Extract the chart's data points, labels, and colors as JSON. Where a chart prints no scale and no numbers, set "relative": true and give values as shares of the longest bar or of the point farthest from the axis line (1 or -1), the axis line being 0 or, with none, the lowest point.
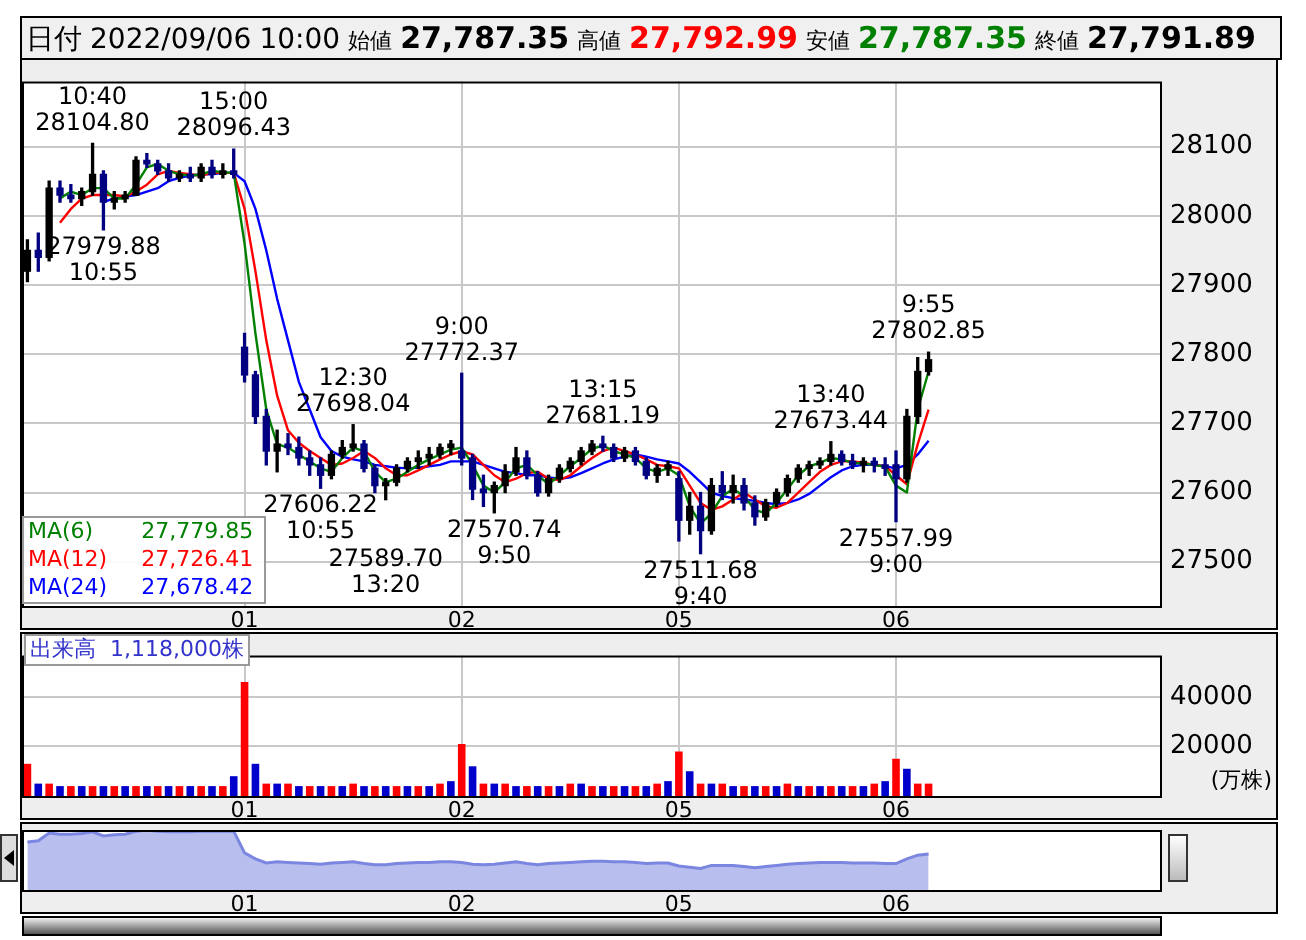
{
  "chart_data": [
    {
      "type": "candlestick",
      "title": "日付 2022/09/06 10:00 始値 27,787.35 高値 27,792.99 安値 27,787.35 終値 27,791.89",
      "categories": [
        null,
        null,
        null,
        null,
        null,
        null,
        null,
        null,
        null,
        null,
        null,
        null,
        null,
        null,
        null,
        null,
        null,
        null,
        null,
        null,
        "01",
        null,
        null,
        null,
        null,
        null,
        null,
        null,
        null,
        null,
        null,
        null,
        null,
        null,
        null,
        null,
        null,
        null,
        null,
        null,
        "02",
        null,
        null,
        null,
        null,
        null,
        null,
        null,
        null,
        null,
        null,
        null,
        null,
        null,
        null,
        null,
        null,
        null,
        null,
        null,
        "05",
        null,
        null,
        null,
        null,
        null,
        null,
        null,
        null,
        null,
        null,
        null,
        null,
        null,
        null,
        null,
        null,
        null,
        null,
        null,
        "06",
        null,
        null,
        null,
        null,
        null,
        null,
        null,
        null,
        null,
        null,
        null,
        null,
        null,
        null,
        null,
        null,
        null,
        null,
        null,
        null,
        null,
        null,
        null,
        null
      ],
      "ohlc": [
        [
          27920,
          27965,
          27905,
          27950
        ],
        [
          27950,
          27975,
          27920,
          27940
        ],
        [
          27940,
          28050,
          27935,
          28040
        ],
        [
          28040,
          28050,
          28020,
          28030
        ],
        [
          28030,
          28045,
          28020,
          28025
        ],
        [
          28025,
          28040,
          28015,
          28035
        ],
        [
          28035,
          28104.8,
          28030,
          28060
        ],
        [
          28060,
          28065,
          27979.88,
          28020
        ],
        [
          28020,
          28035,
          28010,
          28025
        ],
        [
          28025,
          28035,
          28020,
          28030
        ],
        [
          28030,
          28085,
          28030,
          28080
        ],
        [
          28080,
          28090,
          28070,
          28075
        ],
        [
          28075,
          28080,
          28060,
          28065
        ],
        [
          28065,
          28075,
          28050,
          28055
        ],
        [
          28055,
          28065,
          28050,
          28060
        ],
        [
          28060,
          28070,
          28050,
          28055
        ],
        [
          28055,
          28075,
          28050,
          28070
        ],
        [
          28070,
          28080,
          28055,
          28060
        ],
        [
          28060,
          28075,
          28055,
          28065
        ],
        [
          28065,
          28096.43,
          28055,
          28060
        ],
        [
          27810,
          27830,
          27760,
          27770
        ],
        [
          27770,
          27775,
          27700,
          27710
        ],
        [
          27710,
          27720,
          27640,
          27660
        ],
        [
          27660,
          27690,
          27630,
          27670
        ],
        [
          27670,
          27685,
          27655,
          27665
        ],
        [
          27665,
          27680,
          27640,
          27650
        ],
        [
          27650,
          27660,
          27625,
          27640
        ],
        [
          27640,
          27650,
          27606.22,
          27625
        ],
        [
          27625,
          27660,
          27620,
          27655
        ],
        [
          27655,
          27675,
          27650,
          27665
        ],
        [
          27665,
          27698.04,
          27660,
          27670
        ],
        [
          27670,
          27675,
          27630,
          27635
        ],
        [
          27635,
          27640,
          27600,
          27610
        ],
        [
          27610,
          27620,
          27589.7,
          27615
        ],
        [
          27615,
          27640,
          27610,
          27635
        ],
        [
          27635,
          27650,
          27630,
          27645
        ],
        [
          27645,
          27660,
          27635,
          27650
        ],
        [
          27650,
          27665,
          27640,
          27655
        ],
        [
          27655,
          27670,
          27650,
          27665
        ],
        [
          27665,
          27675,
          27655,
          27670
        ],
        [
          27660,
          27772.37,
          27640,
          27650
        ],
        [
          27650,
          27655,
          27590,
          27605
        ],
        [
          27605,
          27625,
          27580,
          27600
        ],
        [
          27600,
          27615,
          27570.74,
          27610
        ],
        [
          27610,
          27640,
          27600,
          27630
        ],
        [
          27630,
          27665,
          27625,
          27650
        ],
        [
          27650,
          27660,
          27620,
          27625
        ],
        [
          27625,
          27630,
          27595,
          27600
        ],
        [
          27600,
          27625,
          27595,
          27620
        ],
        [
          27620,
          27640,
          27615,
          27635
        ],
        [
          27635,
          27650,
          27630,
          27645
        ],
        [
          27645,
          27665,
          27640,
          27660
        ],
        [
          27660,
          27675,
          27655,
          27670
        ],
        [
          27670,
          27681.19,
          27660,
          27665
        ],
        [
          27665,
          27670,
          27645,
          27650
        ],
        [
          27650,
          27665,
          27645,
          27660
        ],
        [
          27660,
          27665,
          27640,
          27645
        ],
        [
          27645,
          27650,
          27620,
          27625
        ],
        [
          27625,
          27640,
          27615,
          27635
        ],
        [
          27635,
          27645,
          27625,
          27640
        ],
        [
          27620,
          27630,
          27530,
          27560
        ],
        [
          27560,
          27600,
          27540,
          27580
        ],
        [
          27580,
          27600,
          27511.68,
          27545
        ],
        [
          27545,
          27620,
          27540,
          27610
        ],
        [
          27610,
          27630,
          27590,
          27600
        ],
        [
          27600,
          27625,
          27585,
          27610
        ],
        [
          27610,
          27620,
          27575,
          27585
        ],
        [
          27585,
          27595,
          27553,
          27565
        ],
        [
          27565,
          27590,
          27560,
          27585
        ],
        [
          27585,
          27605,
          27580,
          27600
        ],
        [
          27600,
          27625,
          27595,
          27620
        ],
        [
          27620,
          27640,
          27615,
          27635
        ],
        [
          27635,
          27645,
          27625,
          27640
        ],
        [
          27640,
          27650,
          27635,
          27645
        ],
        [
          27645,
          27673.44,
          27640,
          27655
        ],
        [
          27655,
          27660,
          27640,
          27645
        ],
        [
          27645,
          27655,
          27635,
          27640
        ],
        [
          27640,
          27650,
          27630,
          27645
        ],
        [
          27645,
          27650,
          27630,
          27640
        ],
        [
          27640,
          27650,
          27625,
          27635
        ],
        [
          27640,
          27660,
          27557.99,
          27620
        ],
        [
          27620,
          27720,
          27615,
          27710
        ],
        [
          27710,
          27795,
          27700,
          27775
        ],
        [
          27775,
          27802.85,
          27770,
          27791.89
        ],
        null,
        null,
        null,
        null,
        null,
        null,
        null,
        null,
        null,
        null,
        null,
        null,
        null,
        null,
        null,
        null,
        null,
        null,
        null,
        null,
        null
      ],
      "colors": [
        "#000000",
        "#000080",
        "#000000",
        "#000080",
        "#000080",
        "#000000",
        "#000000",
        "#000080",
        "#000000",
        "#000000",
        "#000000",
        "#000080",
        "#000080",
        "#000080",
        "#000000",
        "#000080",
        "#000000",
        "#000080",
        "#000000",
        "#000080",
        "#000080",
        "#000080",
        "#000080",
        "#000000",
        "#000080",
        "#000080",
        "#000080",
        "#000080",
        "#000000",
        "#000000",
        "#000000",
        "#000080",
        "#000080",
        "#000000",
        "#000000",
        "#000000",
        "#000000",
        "#000000",
        "#000000",
        "#000000",
        "#000080",
        "#000080",
        "#000080",
        "#000000",
        "#000000",
        "#000000",
        "#000080",
        "#000080",
        "#000000",
        "#000000",
        "#000000",
        "#000000",
        "#000000",
        "#000080",
        "#000080",
        "#000000",
        "#000080",
        "#000080",
        "#000000",
        "#000000",
        "#000080",
        "#000000",
        "#000080",
        "#000000",
        "#000080",
        "#000000",
        "#000080",
        "#000080",
        "#000000",
        "#000000",
        "#000000",
        "#000000",
        "#000000",
        "#000000",
        "#000000",
        "#000080",
        "#000080",
        "#000000",
        "#000080",
        "#000080",
        "#000080",
        "#000000",
        "#000000",
        "#000000",
        null,
        null,
        null,
        null,
        null,
        null,
        null,
        null,
        null,
        null,
        null,
        null,
        null,
        null,
        null,
        null,
        null,
        null,
        null,
        null,
        null
      ],
      "series": [
        {
          "name": "MA(6)  27,779.85",
          "type": "line",
          "color": "#008000",
          "values": [
            null,
            null,
            null,
            28025,
            28035,
            28030,
            28040,
            28040,
            28025,
            28025,
            28045,
            28070,
            28075,
            28065,
            28060,
            28058,
            28060,
            28065,
            28063,
            28062,
            27960,
            27830,
            27720,
            27670,
            27665,
            27655,
            27645,
            27635,
            27630,
            27650,
            27665,
            27660,
            27630,
            27615,
            27620,
            27630,
            27640,
            27648,
            27655,
            27662,
            27665,
            27640,
            27610,
            27600,
            27615,
            27635,
            27640,
            27625,
            27612,
            27625,
            27638,
            27650,
            27663,
            27668,
            27660,
            27655,
            27650,
            27635,
            27630,
            27635,
            27625,
            27580,
            27555,
            27570,
            27595,
            27605,
            27595,
            27575,
            27570,
            27585,
            27605,
            27625,
            27638,
            27643,
            27650,
            27648,
            27643,
            27642,
            27640,
            27637,
            27610,
            27600,
            27720,
            27775,
            null,
            null,
            null,
            null,
            null,
            null,
            null,
            null,
            null,
            null,
            null,
            null,
            null,
            null,
            null,
            null,
            null,
            null,
            null,
            null,
            null
          ]
        },
        {
          "name": "MA(12)  27,726.41",
          "type": "line",
          "color": "#ff0000",
          "values": [
            null,
            null,
            null,
            27990,
            28010,
            28025,
            28030,
            28030,
            28030,
            28028,
            28035,
            28045,
            28060,
            28065,
            28062,
            28060,
            28058,
            28062,
            28062,
            28062,
            28010,
            27920,
            27820,
            27740,
            27690,
            27672,
            27660,
            27650,
            27640,
            27642,
            27650,
            27660,
            27650,
            27635,
            27625,
            27625,
            27632,
            27640,
            27648,
            27655,
            27660,
            27655,
            27640,
            27625,
            27615,
            27620,
            27628,
            27630,
            27620,
            27618,
            27625,
            27638,
            27650,
            27660,
            27665,
            27660,
            27655,
            27648,
            27640,
            27638,
            27635,
            27610,
            27585,
            27575,
            27580,
            27590,
            27600,
            27590,
            27580,
            27578,
            27585,
            27600,
            27615,
            27630,
            27640,
            27645,
            27645,
            27643,
            27640,
            27638,
            27625,
            27612,
            27670,
            27720,
            null,
            null,
            null,
            null,
            null,
            null,
            null,
            null,
            null,
            null,
            null,
            null,
            null,
            null,
            null,
            null,
            null,
            null,
            null,
            null,
            null
          ]
        },
        {
          "name": "MA(24)  27,678.42",
          "type": "line",
          "color": "#0000ff",
          "values": [
            null,
            null,
            null,
            null,
            null,
            null,
            null,
            28020,
            28025,
            28028,
            28030,
            28035,
            28040,
            28050,
            28055,
            28058,
            28060,
            28060,
            28062,
            28062,
            28050,
            28010,
            27950,
            27880,
            27820,
            27760,
            27720,
            27680,
            27660,
            27652,
            27648,
            27645,
            27640,
            27638,
            27636,
            27635,
            27636,
            27638,
            27640,
            27645,
            27645,
            27645,
            27640,
            27635,
            27630,
            27628,
            27625,
            27625,
            27622,
            27620,
            27622,
            27628,
            27635,
            27642,
            27648,
            27652,
            27655,
            27652,
            27648,
            27645,
            27642,
            27630,
            27615,
            27600,
            27595,
            27592,
            27590,
            27588,
            27585,
            27583,
            27585,
            27590,
            27598,
            27610,
            27622,
            27632,
            27638,
            27640,
            27640,
            27638,
            27635,
            27640,
            27655,
            27675,
            null,
            null,
            null,
            null,
            null,
            null,
            null,
            null,
            null,
            null,
            null,
            null,
            null,
            null,
            null,
            null,
            null,
            null,
            null,
            null,
            null
          ]
        }
      ],
      "ylim": [
        27436,
        28194
      ],
      "yticks": [
        27500,
        27600,
        27700,
        27800,
        27900,
        28000,
        28100
      ],
      "grid": true,
      "annotations": [
        {
          "text": "10:40\n28104.80",
          "y": 28104.8
        },
        {
          "text": "27979.88\n10:55",
          "y": 27979.88
        },
        {
          "text": "15:00\n28096.43",
          "y": 28096.43
        },
        {
          "text": "12:30\n27698.04",
          "y": 27698.04
        },
        {
          "text": "27606.22\n10:55",
          "y": 27606.22
        },
        {
          "text": "27589.70\n13:20",
          "y": 27589.7
        },
        {
          "text": "9:00\n27772.37",
          "y": 27772.37
        },
        {
          "text": "27570.74\n9:50",
          "y": 27570.74
        },
        {
          "text": "13:15\n27681.19",
          "y": 27681.19
        },
        {
          "text": "27511.68\n9:40",
          "y": 27511.68
        },
        {
          "text": "13:40\n27673.44",
          "y": 27673.44
        },
        {
          "text": "27557.99\n9:00",
          "y": 27557.99
        },
        {
          "text": "9:55\n27802.85",
          "y": 27802.85
        }
      ]
    },
    {
      "type": "bar",
      "title": "出来高  1,118,000株",
      "ylabel": "(万株)",
      "categories": [
        null,
        null,
        null,
        null,
        null,
        null,
        null,
        null,
        null,
        null,
        null,
        null,
        null,
        null,
        null,
        null,
        null,
        null,
        null,
        null,
        "01",
        null,
        null,
        null,
        null,
        null,
        null,
        null,
        null,
        null,
        null,
        null,
        null,
        null,
        null,
        null,
        null,
        null,
        null,
        null,
        "02",
        null,
        null,
        null,
        null,
        null,
        null,
        null,
        null,
        null,
        null,
        null,
        null,
        null,
        null,
        null,
        null,
        null,
        null,
        null,
        "05",
        null,
        null,
        null,
        null,
        null,
        null,
        null,
        null,
        null,
        null,
        null,
        null,
        null,
        null,
        null,
        null,
        null,
        null,
        null,
        "06",
        null,
        null,
        null,
        null,
        null,
        null,
        null,
        null,
        null,
        null,
        null,
        null,
        null,
        null,
        null,
        null,
        null,
        null,
        null,
        null,
        null,
        null,
        null,
        null
      ],
      "values": [
        13000,
        5000,
        5000,
        4000,
        4000,
        4000,
        4000,
        4000,
        4000,
        4000,
        4000,
        4000,
        4000,
        4000,
        4000,
        4000,
        4000,
        4000,
        4000,
        8000,
        46000,
        13000,
        5000,
        5000,
        5000,
        4000,
        4000,
        4000,
        4000,
        4000,
        5000,
        4000,
        4000,
        4000,
        4000,
        4000,
        4000,
        4000,
        5000,
        6000,
        21000,
        12000,
        5000,
        5000,
        5000,
        4000,
        4000,
        4000,
        4000,
        4000,
        5000,
        5000,
        4000,
        4000,
        4000,
        4000,
        4000,
        4000,
        5000,
        6000,
        18000,
        10000,
        5000,
        5000,
        5000,
        4000,
        4000,
        4000,
        4000,
        4000,
        5000,
        4000,
        4000,
        4000,
        4000,
        4000,
        4000,
        4000,
        5000,
        6000,
        15000,
        11000,
        5000,
        5000,
        null,
        null,
        null,
        null,
        null,
        null,
        null,
        null,
        null,
        null,
        null,
        null,
        null,
        null,
        null,
        null,
        null,
        null,
        null,
        null,
        null
      ],
      "colors": [
        "#ff0000",
        "#0000cc",
        "#ff0000",
        "#0000cc",
        "#ff0000",
        "#0000cc",
        "#ff0000",
        "#0000cc",
        "#ff0000",
        "#0000cc",
        "#ff0000",
        "#0000cc",
        "#ff0000",
        "#0000cc",
        "#ff0000",
        "#0000cc",
        "#ff0000",
        "#0000cc",
        "#ff0000",
        "#0000cc",
        "#ff0000",
        "#0000cc",
        "#ff0000",
        "#0000cc",
        "#ff0000",
        "#0000cc",
        "#ff0000",
        "#0000cc",
        "#ff0000",
        "#0000cc",
        "#ff0000",
        "#0000cc",
        "#ff0000",
        "#0000cc",
        "#ff0000",
        "#0000cc",
        "#ff0000",
        "#0000cc",
        "#ff0000",
        "#0000cc",
        "#ff0000",
        "#0000cc",
        "#ff0000",
        "#0000cc",
        "#ff0000",
        "#0000cc",
        "#ff0000",
        "#0000cc",
        "#ff0000",
        "#0000cc",
        "#ff0000",
        "#0000cc",
        "#ff0000",
        "#0000cc",
        "#ff0000",
        "#0000cc",
        "#ff0000",
        "#0000cc",
        "#ff0000",
        "#0000cc",
        "#ff0000",
        "#0000cc",
        "#ff0000",
        "#0000cc",
        "#ff0000",
        "#0000cc",
        "#ff0000",
        "#0000cc",
        "#ff0000",
        "#0000cc",
        "#ff0000",
        "#0000cc",
        "#ff0000",
        "#0000cc",
        "#ff0000",
        "#0000cc",
        "#ff0000",
        "#0000cc",
        "#ff0000",
        "#0000cc",
        "#ff0000",
        "#0000cc",
        "#ff0000",
        "#ff0000",
        null,
        null,
        null,
        null,
        null,
        null,
        null,
        null,
        null,
        null,
        null,
        null,
        null,
        null,
        null,
        null,
        null,
        null,
        null,
        null,
        null
      ],
      "ylim": [
        0,
        56700
      ],
      "yticks": [
        20000,
        40000
      ],
      "grid": true
    },
    {
      "type": "area",
      "relative": true,
      "color": "#7a86e0",
      "categories": [
        null,
        null,
        null,
        null,
        null,
        null,
        null,
        null,
        null,
        null,
        null,
        null,
        null,
        null,
        null,
        null,
        null,
        null,
        null,
        null,
        "01",
        null,
        null,
        null,
        null,
        null,
        null,
        null,
        null,
        null,
        null,
        null,
        null,
        null,
        null,
        null,
        null,
        null,
        null,
        null,
        "02",
        null,
        null,
        null,
        null,
        null,
        null,
        null,
        null,
        null,
        null,
        null,
        null,
        null,
        null,
        null,
        null,
        null,
        null,
        null,
        "05",
        null,
        null,
        null,
        null,
        null,
        null,
        null,
        null,
        null,
        null,
        null,
        null,
        null,
        null,
        null,
        null,
        null,
        null,
        null,
        "06",
        null,
        null,
        null,
        null,
        null,
        null,
        null,
        null,
        null,
        null,
        null,
        null,
        null,
        null,
        null,
        null,
        null,
        null,
        null,
        null,
        null,
        null,
        null,
        null
      ],
      "values": [
        0.8,
        0.82,
        0.95,
        0.93,
        0.93,
        0.94,
        0.97,
        0.9,
        0.92,
        0.93,
        0.98,
        1,
        0.98,
        0.97,
        0.97,
        0.97,
        0.98,
        0.98,
        0.98,
        0.98,
        0.62,
        0.52,
        0.45,
        0.47,
        0.46,
        0.45,
        0.44,
        0.43,
        0.45,
        0.46,
        0.47,
        0.44,
        0.42,
        0.42,
        0.44,
        0.45,
        0.46,
        0.46,
        0.47,
        0.47,
        0.46,
        0.43,
        0.42,
        0.43,
        0.45,
        0.47,
        0.44,
        0.42,
        0.44,
        0.45,
        0.46,
        0.47,
        0.48,
        0.48,
        0.47,
        0.47,
        0.46,
        0.44,
        0.45,
        0.45,
        0.4,
        0.38,
        0.36,
        0.41,
        0.41,
        0.41,
        0.39,
        0.37,
        0.39,
        0.41,
        0.43,
        0.44,
        0.45,
        0.46,
        0.46,
        0.46,
        0.45,
        0.45,
        0.45,
        0.44,
        0.44,
        0.52,
        0.58,
        0.6,
        null,
        null,
        null,
        null,
        null,
        null,
        null,
        null,
        null,
        null,
        null,
        null,
        null,
        null,
        null,
        null,
        null,
        null,
        null,
        null,
        null
      ]
    }
  ]
}
